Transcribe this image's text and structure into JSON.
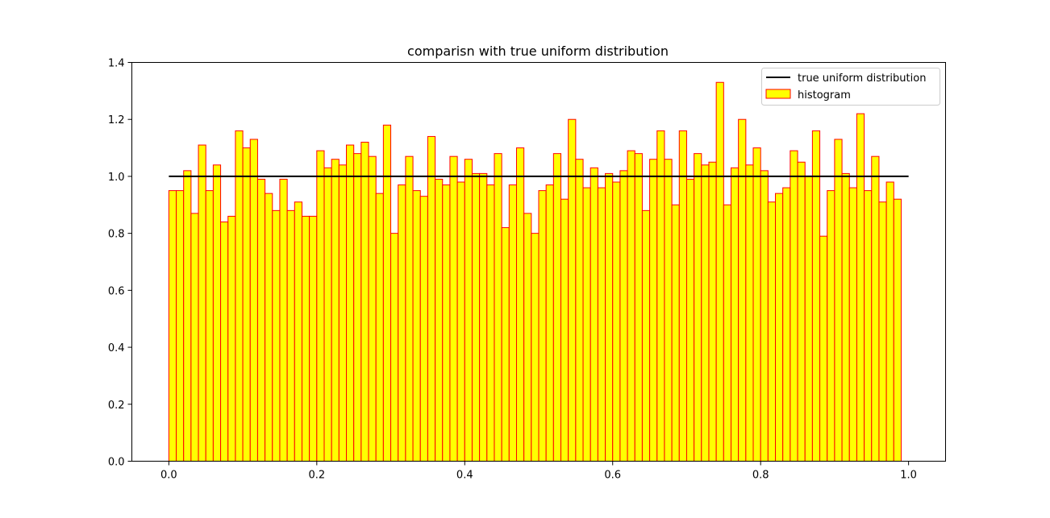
{
  "chart_data": {
    "type": "bar",
    "title": "comparisn with true uniform distribution",
    "xlabel": "",
    "ylabel": "",
    "xlim": [
      -0.05,
      1.05
    ],
    "ylim": [
      0,
      1.4
    ],
    "x_ticks": [
      0.0,
      0.2,
      0.4,
      0.6,
      0.8,
      1.0
    ],
    "x_tick_labels": [
      "0.0",
      "0.2",
      "0.4",
      "0.6",
      "0.8",
      "1.0"
    ],
    "y_ticks": [
      0.0,
      0.2,
      0.4,
      0.6,
      0.8,
      1.0,
      1.2,
      1.4
    ],
    "y_tick_labels": [
      "0.0",
      "0.2",
      "0.4",
      "0.6",
      "0.8",
      "1.0",
      "1.2",
      "1.4"
    ],
    "grid": false,
    "legend_position": "top-right",
    "bin_start": 0.0,
    "bin_width": 0.01,
    "series": [
      {
        "name": "histogram",
        "kind": "histogram",
        "fill_color": "#ffff00",
        "edge_color": "#ff0000",
        "values": [
          0.95,
          0.95,
          1.02,
          0.87,
          1.11,
          0.95,
          1.04,
          0.84,
          0.86,
          1.16,
          1.1,
          1.13,
          0.99,
          0.94,
          0.88,
          0.99,
          0.88,
          0.91,
          0.86,
          0.86,
          1.09,
          1.03,
          1.06,
          1.04,
          1.11,
          1.08,
          1.12,
          1.07,
          0.94,
          1.18,
          0.8,
          0.97,
          1.07,
          0.95,
          0.93,
          1.14,
          0.99,
          0.97,
          1.07,
          0.98,
          1.06,
          1.01,
          1.01,
          0.97,
          1.08,
          0.82,
          0.97,
          1.1,
          0.87,
          0.8,
          0.95,
          0.97,
          1.08,
          0.92,
          1.2,
          1.06,
          0.96,
          1.03,
          0.96,
          1.01,
          0.98,
          1.02,
          1.09,
          1.08,
          0.88,
          1.06,
          1.16,
          1.06,
          0.9,
          1.16,
          0.99,
          1.08,
          1.04,
          1.05,
          1.33,
          0.9,
          1.03,
          1.2,
          1.04,
          1.1,
          1.02,
          0.91,
          0.94,
          0.96,
          1.09,
          1.05,
          1.0,
          1.16,
          0.79,
          0.95,
          1.13,
          1.01,
          0.96,
          1.22,
          0.95,
          1.07,
          0.91,
          0.98,
          0.92
        ]
      },
      {
        "name": "true uniform distribution",
        "kind": "line",
        "color": "#000000",
        "x": [
          0.0,
          1.0
        ],
        "y": [
          1.0,
          1.0
        ]
      }
    ]
  }
}
